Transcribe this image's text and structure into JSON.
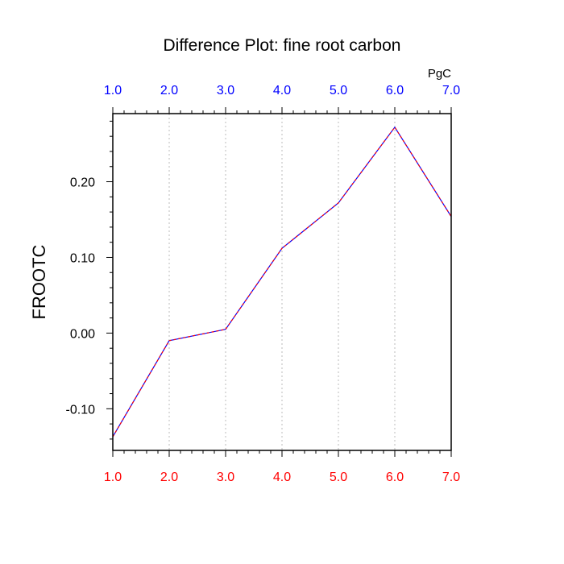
{
  "chart_data": {
    "type": "line",
    "title": "Difference Plot: fine root carbon",
    "units": "PgC",
    "xlabel": "",
    "ylabel": "FROOTC",
    "x": [
      1.0,
      2.0,
      3.0,
      4.0,
      5.0,
      6.0,
      7.0
    ],
    "xlim": [
      1.0,
      7.0
    ],
    "ylim": [
      -0.155,
      0.29
    ],
    "xtick_labels": [
      "1.0",
      "2.0",
      "3.0",
      "4.0",
      "5.0",
      "6.0",
      "7.0"
    ],
    "yticks": [
      -0.1,
      0.0,
      0.1,
      0.2
    ],
    "ytick_labels": [
      "-0.10",
      "0.00",
      "0.10",
      "0.20"
    ],
    "grid": "vertical dotted",
    "colors": {
      "top_ticks": "#0000ff",
      "bottom_ticks": "#ff0000",
      "line_a": "#0000ff",
      "line_b": "#ff0000",
      "grid": "#bbbbbb",
      "axis": "#000000"
    },
    "series": [
      {
        "values": [
          -0.137,
          -0.01,
          0.005,
          0.112,
          0.172,
          0.272,
          0.154
        ]
      }
    ]
  }
}
